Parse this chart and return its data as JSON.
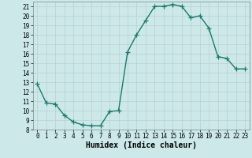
{
  "x": [
    0,
    1,
    2,
    3,
    4,
    5,
    6,
    7,
    8,
    9,
    10,
    11,
    12,
    13,
    14,
    15,
    16,
    17,
    18,
    19,
    20,
    21,
    22,
    23
  ],
  "y": [
    12.8,
    10.8,
    10.7,
    9.5,
    8.8,
    8.5,
    8.4,
    8.4,
    9.9,
    10.0,
    16.2,
    18.0,
    19.5,
    21.0,
    21.0,
    21.2,
    21.0,
    19.8,
    20.0,
    18.7,
    15.7,
    15.5,
    14.4,
    14.4
  ],
  "line_color": "#1a7a6e",
  "marker": "+",
  "marker_size": 4,
  "linewidth": 1.0,
  "xlabel": "Humidex (Indice chaleur)",
  "xlim": [
    -0.5,
    23.5
  ],
  "ylim": [
    8,
    21.5
  ],
  "yticks": [
    8,
    9,
    10,
    11,
    12,
    13,
    14,
    15,
    16,
    17,
    18,
    19,
    20,
    21
  ],
  "xticks": [
    0,
    1,
    2,
    3,
    4,
    5,
    6,
    7,
    8,
    9,
    10,
    11,
    12,
    13,
    14,
    15,
    16,
    17,
    18,
    19,
    20,
    21,
    22,
    23
  ],
  "bg_color": "#cce8e8",
  "grid_color": "#b8d0d0",
  "label_fontsize": 7,
  "tick_fontsize": 5.5
}
